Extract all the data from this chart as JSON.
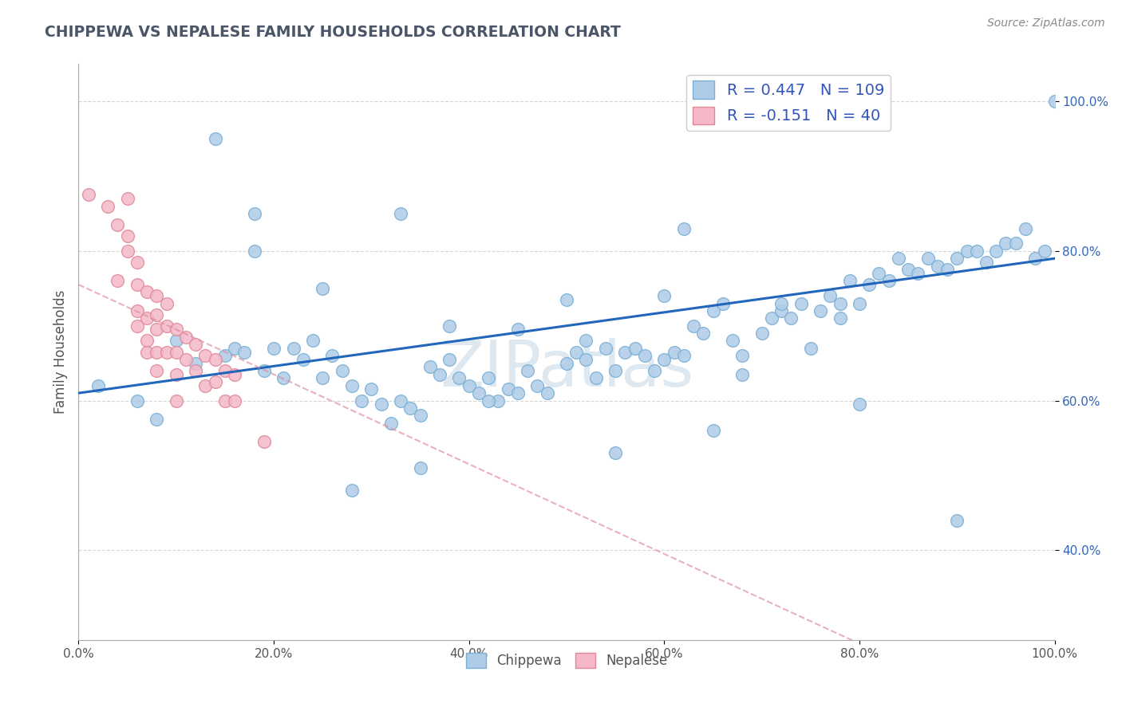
{
  "title": "CHIPPEWA VS NEPALESE FAMILY HOUSEHOLDS CORRELATION CHART",
  "source_text": "Source: ZipAtlas.com",
  "ylabel": "Family Households",
  "xmin": 0.0,
  "xmax": 1.0,
  "ymin": 0.28,
  "ymax": 1.05,
  "chippewa_R": 0.447,
  "chippewa_N": 109,
  "nepalese_R": -0.151,
  "nepalese_N": 40,
  "chippewa_color": "#aecce8",
  "chippewa_edge": "#7aafd4",
  "nepalese_color": "#f4b8c8",
  "nepalese_edge": "#e08898",
  "trend_blue": "#2266bb",
  "trend_pink": "#dd8899",
  "background": "#ffffff",
  "grid_color": "#cccccc",
  "title_color": "#4a5568",
  "legend_text_color": "#3355bb",
  "watermark_color": "#dde8f0",
  "chippewa_x": [
    0.02,
    0.06,
    0.08,
    0.1,
    0.12,
    0.14,
    0.15,
    0.16,
    0.17,
    0.18,
    0.19,
    0.2,
    0.21,
    0.22,
    0.23,
    0.24,
    0.25,
    0.26,
    0.27,
    0.28,
    0.29,
    0.3,
    0.31,
    0.32,
    0.33,
    0.34,
    0.35,
    0.36,
    0.37,
    0.38,
    0.39,
    0.4,
    0.41,
    0.42,
    0.43,
    0.44,
    0.45,
    0.46,
    0.47,
    0.48,
    0.5,
    0.51,
    0.52,
    0.53,
    0.54,
    0.55,
    0.56,
    0.57,
    0.58,
    0.59,
    0.6,
    0.61,
    0.62,
    0.63,
    0.64,
    0.65,
    0.66,
    0.67,
    0.68,
    0.7,
    0.71,
    0.72,
    0.73,
    0.74,
    0.75,
    0.76,
    0.77,
    0.78,
    0.79,
    0.8,
    0.81,
    0.82,
    0.83,
    0.84,
    0.85,
    0.86,
    0.87,
    0.88,
    0.89,
    0.9,
    0.91,
    0.92,
    0.93,
    0.94,
    0.95,
    0.96,
    0.97,
    0.98,
    0.99,
    1.0,
    0.18,
    0.33,
    0.5,
    0.62,
    0.35,
    0.28,
    0.6,
    0.72,
    0.45,
    0.55,
    0.8,
    0.38,
    0.68,
    0.9,
    0.52,
    0.78,
    0.25,
    0.42,
    0.65
  ],
  "chippewa_y": [
    0.62,
    0.6,
    0.575,
    0.68,
    0.65,
    0.95,
    0.66,
    0.67,
    0.665,
    0.8,
    0.64,
    0.67,
    0.63,
    0.67,
    0.655,
    0.68,
    0.63,
    0.66,
    0.64,
    0.62,
    0.6,
    0.615,
    0.595,
    0.57,
    0.6,
    0.59,
    0.58,
    0.645,
    0.635,
    0.655,
    0.63,
    0.62,
    0.61,
    0.63,
    0.6,
    0.615,
    0.61,
    0.64,
    0.62,
    0.61,
    0.65,
    0.665,
    0.655,
    0.63,
    0.67,
    0.64,
    0.665,
    0.67,
    0.66,
    0.64,
    0.655,
    0.665,
    0.66,
    0.7,
    0.69,
    0.72,
    0.73,
    0.68,
    0.635,
    0.69,
    0.71,
    0.72,
    0.71,
    0.73,
    0.67,
    0.72,
    0.74,
    0.73,
    0.76,
    0.73,
    0.755,
    0.77,
    0.76,
    0.79,
    0.775,
    0.77,
    0.79,
    0.78,
    0.775,
    0.79,
    0.8,
    0.8,
    0.785,
    0.8,
    0.81,
    0.81,
    0.83,
    0.79,
    0.8,
    1.0,
    0.85,
    0.85,
    0.735,
    0.83,
    0.51,
    0.48,
    0.74,
    0.73,
    0.695,
    0.53,
    0.595,
    0.7,
    0.66,
    0.44,
    0.68,
    0.71,
    0.75,
    0.6,
    0.56
  ],
  "nepalese_x": [
    0.01,
    0.03,
    0.04,
    0.04,
    0.05,
    0.05,
    0.05,
    0.06,
    0.06,
    0.06,
    0.06,
    0.07,
    0.07,
    0.07,
    0.07,
    0.08,
    0.08,
    0.08,
    0.08,
    0.08,
    0.09,
    0.09,
    0.09,
    0.1,
    0.1,
    0.1,
    0.1,
    0.11,
    0.11,
    0.12,
    0.12,
    0.13,
    0.13,
    0.14,
    0.14,
    0.15,
    0.15,
    0.16,
    0.16,
    0.19
  ],
  "nepalese_y": [
    0.875,
    0.86,
    0.835,
    0.76,
    0.82,
    0.8,
    0.87,
    0.72,
    0.785,
    0.755,
    0.7,
    0.745,
    0.71,
    0.68,
    0.665,
    0.74,
    0.715,
    0.695,
    0.665,
    0.64,
    0.73,
    0.7,
    0.665,
    0.695,
    0.665,
    0.635,
    0.6,
    0.685,
    0.655,
    0.675,
    0.64,
    0.66,
    0.62,
    0.655,
    0.625,
    0.64,
    0.6,
    0.635,
    0.6,
    0.545
  ],
  "ytick_labels": [
    "40.0%",
    "60.0%",
    "80.0%",
    "100.0%"
  ],
  "ytick_values": [
    0.4,
    0.6,
    0.8,
    1.0
  ],
  "xtick_labels": [
    "0.0%",
    "20.0%",
    "40.0%",
    "60.0%",
    "80.0%",
    "100.0%"
  ],
  "xtick_values": [
    0.0,
    0.2,
    0.4,
    0.6,
    0.8,
    1.0
  ]
}
